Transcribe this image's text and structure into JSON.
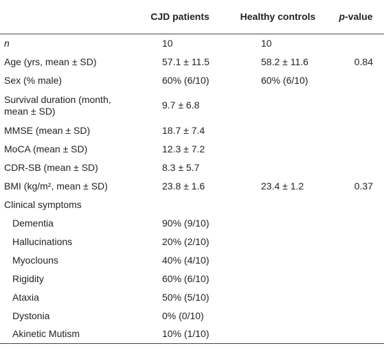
{
  "table": {
    "header": [
      "CJD patients",
      "Healthy controls",
      "p-value"
    ],
    "rows": [
      {
        "label": "n",
        "cjd": "10",
        "controls": "10"
      },
      {
        "label": "Age (yrs, mean ± SD)",
        "cjd": "57.1 ± 11.5",
        "controls": "58.2 ± 11.6",
        "p": "0.84"
      },
      {
        "label": "Sex (% male)",
        "cjd": "60% (6/10)",
        "controls": "60% (6/10)"
      },
      {
        "label": "Survival duration (month, mean ± SD)",
        "cjd": "9.7 ± 6.8"
      },
      {
        "label": "MMSE (mean ± SD)",
        "cjd": "18.7 ± 7.4"
      },
      {
        "label": "MoCA (mean ± SD)",
        "cjd": "12.3 ± 7.2"
      },
      {
        "label": "CDR-SB (mean ± SD)",
        "cjd": "8.3 ± 5.7"
      },
      {
        "label": "BMI (kg/m², mean ± SD)",
        "cjd": "23.8 ± 1.6",
        "controls": "23.4 ± 1.2",
        "p": "0.37"
      }
    ],
    "clinical_symptoms": {
      "label": "Clinical symptoms",
      "rows": [
        {
          "label": "Dementia",
          "cjd": "90% (9/10)"
        },
        {
          "label": "Hallucinations",
          "cjd": "20% (2/10)"
        },
        {
          "label": "Myoclouns",
          "cjd": "40% (4/10)"
        },
        {
          "label": "Rigidity",
          "cjd": "60% (6/10)"
        },
        {
          "label": "Ataxia",
          "cjd": "50% (5/10)"
        },
        {
          "label": "Dystonia",
          "cjd": "0% (0/10)"
        },
        {
          "label": "Akinetic Mutism",
          "cjd": "10% (1/10)"
        }
      ]
    }
  }
}
